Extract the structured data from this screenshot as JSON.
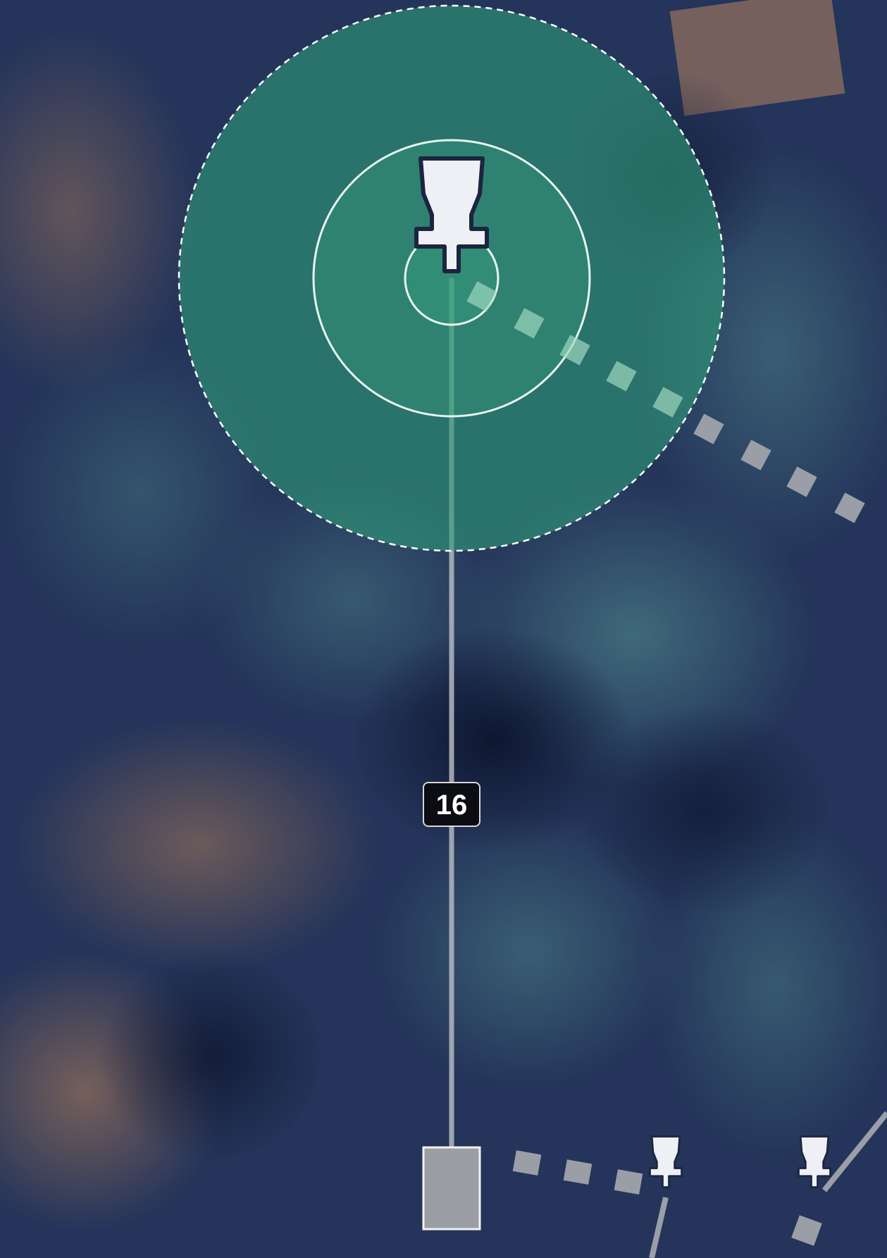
{
  "hole": {
    "number": 16
  }
}
